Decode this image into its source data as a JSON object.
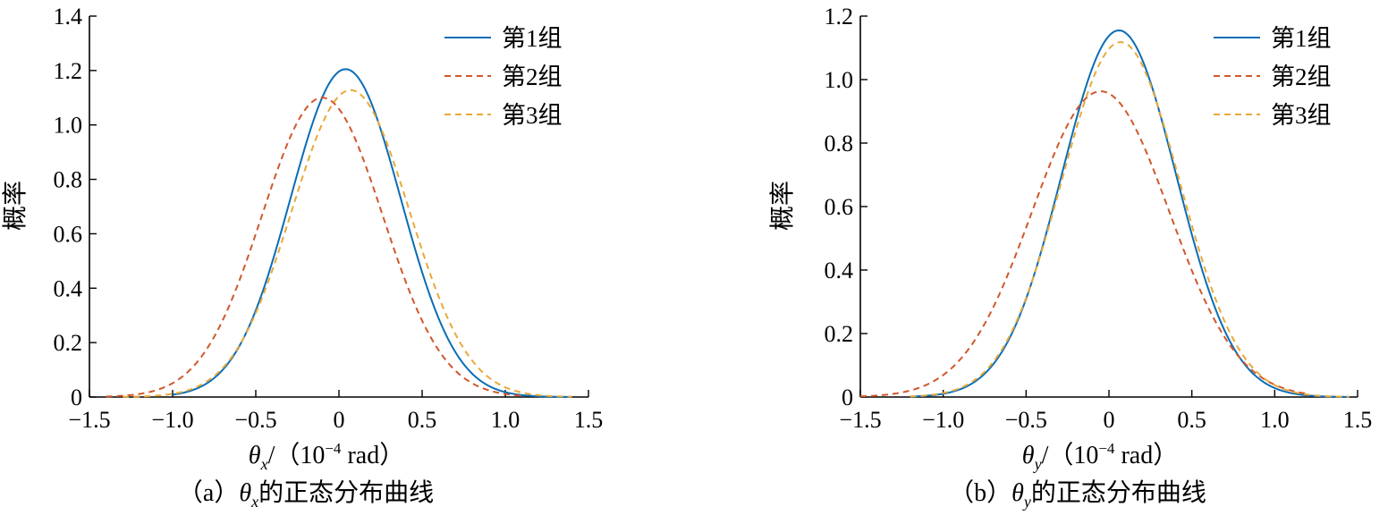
{
  "chart_data": [
    {
      "type": "line",
      "panel": "a",
      "caption": {
        "prefix": "（a）",
        "var": "θ",
        "sub": "x",
        "suffix": "的正态分布曲线"
      },
      "xlabel": {
        "var": "θ",
        "sub": "x",
        "text": "/（10",
        "exp": "−4",
        "unit": " rad）"
      },
      "ylabel": "概率",
      "xlim": [
        -1.5,
        1.5
      ],
      "ylim": [
        0,
        1.4
      ],
      "xticks": [
        -1.5,
        -1.0,
        -0.5,
        0,
        0.5,
        1.0,
        1.5
      ],
      "xtick_labels": [
        "−1.5",
        "−1.0",
        "−0.5",
        "0",
        "0.5",
        "1.0",
        "1.5"
      ],
      "yticks": [
        0,
        0.2,
        0.4,
        0.6,
        0.8,
        1.0,
        1.2,
        1.4
      ],
      "ytick_labels": [
        "0",
        "0.2",
        "0.4",
        "0.6",
        "0.8",
        "1.0",
        "1.2",
        "1.4"
      ],
      "legend_position": "top-right",
      "series": [
        {
          "name": "第1组",
          "style": "solid",
          "color": "#0a6db5",
          "mean": 0.04,
          "peak": 1.205,
          "sigma": 0.331,
          "x_range": [
            -1.0,
            1.4
          ]
        },
        {
          "name": "第2组",
          "style": "dashed",
          "color": "#d0582c",
          "mean": -0.1,
          "peak": 1.1,
          "sigma": 0.363,
          "x_range": [
            -1.4,
            1.1
          ]
        },
        {
          "name": "第3组",
          "style": "dashed",
          "color": "#e8a93a",
          "mean": 0.07,
          "peak": 1.128,
          "sigma": 0.354,
          "x_range": [
            -1.3,
            1.4
          ]
        }
      ]
    },
    {
      "type": "line",
      "panel": "b",
      "caption": {
        "prefix": "（b）",
        "var": "θ",
        "sub": "y",
        "suffix": "的正态分布曲线"
      },
      "xlabel": {
        "var": "θ",
        "sub": "y",
        "text": "/（10",
        "exp": "−4",
        "unit": " rad）"
      },
      "ylabel": "概率",
      "xlim": [
        -1.5,
        1.5
      ],
      "ylim": [
        0,
        1.2
      ],
      "xticks": [
        -1.5,
        -1.0,
        -0.5,
        0,
        0.5,
        1.0,
        1.5
      ],
      "xtick_labels": [
        "−1.5",
        "−1.0",
        "−0.5",
        "0",
        "0.5",
        "1.0",
        "1.5"
      ],
      "yticks": [
        0,
        0.2,
        0.4,
        0.6,
        0.8,
        1.0,
        1.2
      ],
      "ytick_labels": [
        "0",
        "0.2",
        "0.4",
        "0.6",
        "0.8",
        "1.0",
        "1.2"
      ],
      "legend_position": "top-right",
      "series": [
        {
          "name": "第1组",
          "style": "solid",
          "color": "#0a6db5",
          "mean": 0.06,
          "peak": 1.155,
          "sigma": 0.345,
          "x_range": [
            -1.2,
            1.45
          ]
        },
        {
          "name": "第2组",
          "style": "dashed",
          "color": "#d0582c",
          "mean": -0.05,
          "peak": 0.963,
          "sigma": 0.414,
          "x_range": [
            -1.5,
            1.2
          ]
        },
        {
          "name": "第3组",
          "style": "dashed",
          "color": "#e8a93a",
          "mean": 0.07,
          "peak": 1.118,
          "sigma": 0.357,
          "x_range": [
            -1.2,
            1.45
          ]
        }
      ]
    }
  ]
}
